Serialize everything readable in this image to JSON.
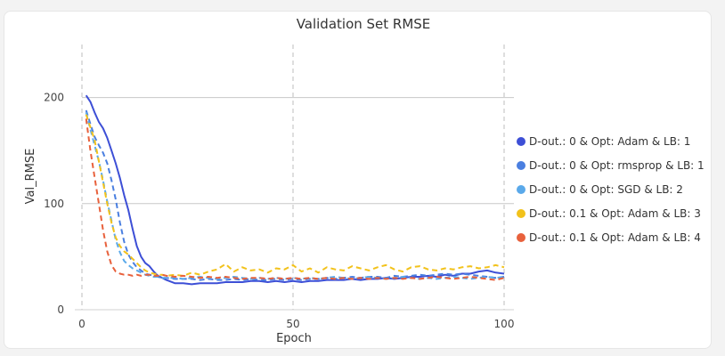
{
  "chart_data": {
    "type": "line",
    "title": "Validation Set RMSE",
    "xlabel": "Epoch",
    "ylabel": "Val_RMSE",
    "xlim": [
      0,
      100
    ],
    "ylim": [
      0,
      250
    ],
    "x_ticks": [
      0,
      50,
      100
    ],
    "y_ticks": [
      0,
      100,
      200
    ],
    "grid": {
      "vertical_dashed": [
        0,
        50,
        100
      ],
      "horizontal": [
        100,
        200
      ]
    },
    "legend_position": "right",
    "series": [
      {
        "name": "D-out.: 0 & Opt: Adam & LB: 1",
        "color": "#3d4fd6",
        "dash": "solid",
        "x": [
          1,
          2,
          3,
          4,
          5,
          6,
          7,
          8,
          9,
          10,
          11,
          12,
          13,
          14,
          15,
          16,
          17,
          18,
          19,
          20,
          22,
          24,
          26,
          28,
          30,
          32,
          34,
          36,
          38,
          40,
          42,
          44,
          46,
          48,
          50,
          52,
          54,
          56,
          58,
          60,
          62,
          64,
          66,
          68,
          70,
          72,
          74,
          76,
          78,
          80,
          82,
          84,
          86,
          88,
          90,
          92,
          94,
          96,
          98,
          100
        ],
        "values": [
          202,
          196,
          186,
          177,
          171,
          162,
          150,
          138,
          124,
          108,
          94,
          76,
          60,
          50,
          44,
          41,
          36,
          32,
          30,
          28,
          25,
          25,
          24,
          25,
          25,
          25,
          26,
          26,
          26,
          27,
          27,
          26,
          27,
          26,
          27,
          26,
          27,
          27,
          28,
          28,
          28,
          29,
          28,
          29,
          29,
          30,
          29,
          30,
          31,
          31,
          32,
          31,
          33,
          32,
          34,
          34,
          36,
          37,
          35,
          34
        ]
      },
      {
        "name": "D-out.: 0 & Opt: rmsprop & LB: 1",
        "color": "#4a7fe0",
        "dash": "dashed",
        "x": [
          1,
          2,
          3,
          4,
          5,
          6,
          7,
          8,
          9,
          10,
          11,
          12,
          13,
          14,
          15,
          16,
          17,
          18,
          19,
          20,
          22,
          24,
          26,
          28,
          30,
          32,
          34,
          36,
          38,
          40,
          42,
          44,
          46,
          48,
          50,
          52,
          54,
          56,
          58,
          60,
          62,
          64,
          66,
          68,
          70,
          72,
          74,
          76,
          78,
          80,
          82,
          84,
          86,
          88,
          90,
          92,
          94,
          96,
          98,
          100
        ],
        "values": [
          188,
          175,
          163,
          155,
          148,
          138,
          122,
          104,
          82,
          64,
          52,
          45,
          40,
          37,
          34,
          33,
          32,
          31,
          30,
          30,
          29,
          29,
          29,
          28,
          29,
          28,
          28,
          29,
          28,
          29,
          28,
          28,
          29,
          28,
          29,
          28,
          29,
          29,
          30,
          29,
          30,
          31,
          30,
          31,
          31,
          30,
          32,
          31,
          32,
          33,
          32,
          33,
          34,
          33,
          34,
          33,
          32,
          31,
          30,
          31
        ]
      },
      {
        "name": "D-out.: 0 & Opt: SGD & LB: 2",
        "color": "#5aa9ea",
        "dash": "dashed",
        "x": [
          1,
          2,
          3,
          4,
          5,
          6,
          7,
          8,
          9,
          10,
          11,
          12,
          13,
          14,
          15,
          16,
          17,
          18,
          19,
          20,
          22,
          24,
          26,
          28,
          30,
          32,
          34,
          36,
          38,
          40,
          42,
          44,
          46,
          48,
          50,
          52,
          54,
          56,
          58,
          60,
          62,
          64,
          66,
          68,
          70,
          72,
          74,
          76,
          78,
          80,
          82,
          84,
          86,
          88,
          90,
          92,
          94,
          96,
          98,
          100
        ],
        "values": [
          186,
          170,
          155,
          140,
          122,
          102,
          84,
          66,
          54,
          46,
          42,
          39,
          37,
          35,
          33,
          32,
          31,
          31,
          30,
          30,
          30,
          29,
          30,
          31,
          30,
          29,
          30,
          31,
          30,
          29,
          30,
          29,
          30,
          29,
          30,
          29,
          30,
          29,
          30,
          31,
          30,
          29,
          30,
          31,
          30,
          29,
          30,
          31,
          30,
          29,
          30,
          29,
          30,
          31,
          30,
          29,
          30,
          31,
          30,
          31
        ]
      },
      {
        "name": "D-out.: 0.1 & Opt: Adam & LB: 3",
        "color": "#f2c21b",
        "dash": "dashed",
        "x": [
          1,
          2,
          3,
          4,
          5,
          6,
          7,
          8,
          9,
          10,
          11,
          12,
          13,
          14,
          15,
          16,
          17,
          18,
          19,
          20,
          22,
          24,
          26,
          28,
          30,
          32,
          34,
          36,
          38,
          40,
          42,
          44,
          46,
          48,
          50,
          52,
          54,
          56,
          58,
          60,
          62,
          64,
          66,
          68,
          70,
          72,
          74,
          76,
          78,
          80,
          82,
          84,
          86,
          88,
          90,
          92,
          94,
          96,
          98,
          100
        ],
        "values": [
          184,
          172,
          160,
          140,
          120,
          100,
          82,
          68,
          60,
          55,
          52,
          48,
          44,
          40,
          37,
          35,
          34,
          33,
          33,
          32,
          33,
          32,
          35,
          33,
          36,
          38,
          43,
          36,
          40,
          37,
          38,
          35,
          39,
          38,
          42,
          36,
          39,
          35,
          40,
          38,
          37,
          41,
          39,
          37,
          40,
          42,
          38,
          36,
          40,
          41,
          38,
          37,
          39,
          38,
          40,
          41,
          39,
          40,
          42,
          40
        ]
      },
      {
        "name": "D-out.: 0.1 & Opt: Adam & LB: 4",
        "color": "#e8613c",
        "dash": "dashed",
        "x": [
          1,
          2,
          3,
          4,
          5,
          6,
          7,
          8,
          9,
          10,
          11,
          12,
          13,
          14,
          15,
          16,
          17,
          18,
          19,
          20,
          22,
          24,
          26,
          28,
          30,
          32,
          34,
          36,
          38,
          40,
          42,
          44,
          46,
          48,
          50,
          52,
          54,
          56,
          58,
          60,
          62,
          64,
          66,
          68,
          70,
          72,
          74,
          76,
          78,
          80,
          82,
          84,
          86,
          88,
          90,
          92,
          94,
          96,
          98,
          100
        ],
        "values": [
          180,
          150,
          125,
          100,
          75,
          55,
          42,
          36,
          34,
          33,
          33,
          32,
          33,
          32,
          33,
          33,
          32,
          32,
          33,
          32,
          31,
          32,
          31,
          30,
          31,
          30,
          31,
          30,
          29,
          30,
          30,
          29,
          30,
          29,
          30,
          29,
          30,
          29,
          30,
          29,
          30,
          29,
          30,
          29,
          30,
          29,
          30,
          29,
          30,
          29,
          30,
          31,
          30,
          29,
          30,
          31,
          30,
          29,
          28,
          30
        ]
      }
    ]
  }
}
